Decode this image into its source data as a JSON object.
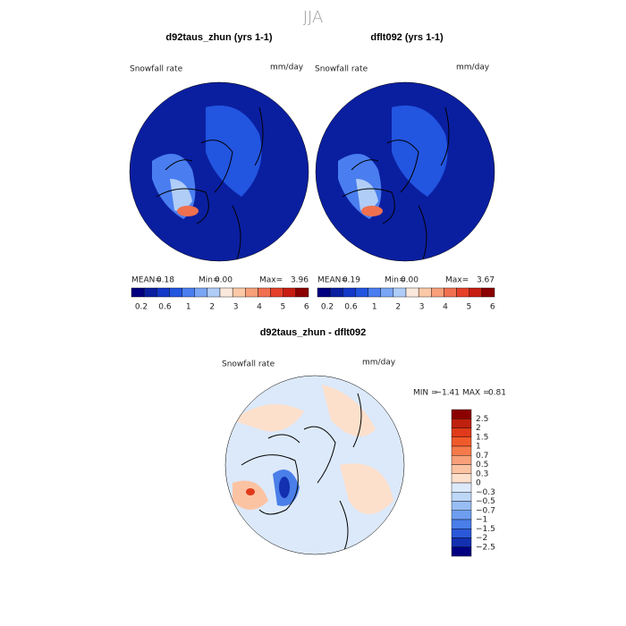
{
  "title": "JJA",
  "panels": [
    {
      "title": "d92taus_zhun (yrs 1-1)",
      "variable": "Snowfall rate",
      "units": "mm/day",
      "stats": [
        {
          "label": "MEAN=",
          "value": "0.18"
        },
        {
          "label": "Min=",
          "value": "0.00"
        },
        {
          "label": "Max=",
          "value": "3.96"
        }
      ],
      "colorbar": {
        "colors": [
          "#000080",
          "#0a1fa0",
          "#1438c8",
          "#2255e0",
          "#4a7ef0",
          "#7aa6f5",
          "#b0cdf8",
          "#fbe8dc",
          "#fbc9a8",
          "#f7a07a",
          "#f07050",
          "#e5402a",
          "#c81e12",
          "#8b0000"
        ],
        "labels": [
          "0.2",
          "0.6",
          "1",
          "2",
          "3",
          "4",
          "5",
          "6"
        ]
      }
    },
    {
      "title": "dflt092 (yrs 1-1)",
      "variable": "Snowfall rate",
      "units": "mm/day",
      "stats": [
        {
          "label": "MEAN=",
          "value": "0.19"
        },
        {
          "label": "Min=",
          "value": "0.00"
        },
        {
          "label": "Max=",
          "value": "3.67"
        }
      ],
      "colorbar": {
        "colors": [
          "#000080",
          "#0a1fa0",
          "#1438c8",
          "#2255e0",
          "#4a7ef0",
          "#7aa6f5",
          "#b0cdf8",
          "#fbe8dc",
          "#fbc9a8",
          "#f7a07a",
          "#f07050",
          "#e5402a",
          "#c81e12",
          "#8b0000"
        ],
        "labels": [
          "0.2",
          "0.6",
          "1",
          "2",
          "3",
          "4",
          "5",
          "6"
        ]
      }
    }
  ],
  "difference": {
    "title": "d92taus_zhun - dflt092",
    "variable": "Snowfall rate",
    "units": "mm/day",
    "stats": [
      {
        "label": "MIN =",
        "value": "−1.41"
      },
      {
        "label": "MAX =",
        "value": "0.81"
      }
    ],
    "colorbar": {
      "colors": [
        "#8b0000",
        "#c0200e",
        "#e03a1a",
        "#f05a2a",
        "#f57a4a",
        "#f9a07a",
        "#fcc3a3",
        "#fde0cc",
        "#dce9fa",
        "#bdd7f7",
        "#98bdf4",
        "#6e9ef0",
        "#4a7ee8",
        "#2a58d8",
        "#1230b0",
        "#000080"
      ],
      "labels": [
        "2.5",
        "2",
        "1.5",
        "1",
        "0.7",
        "0.5",
        "0.3",
        "0",
        "−0.3",
        "−0.5",
        "−0.7",
        "−1",
        "−1.5",
        "−2",
        "−2.5"
      ]
    }
  }
}
